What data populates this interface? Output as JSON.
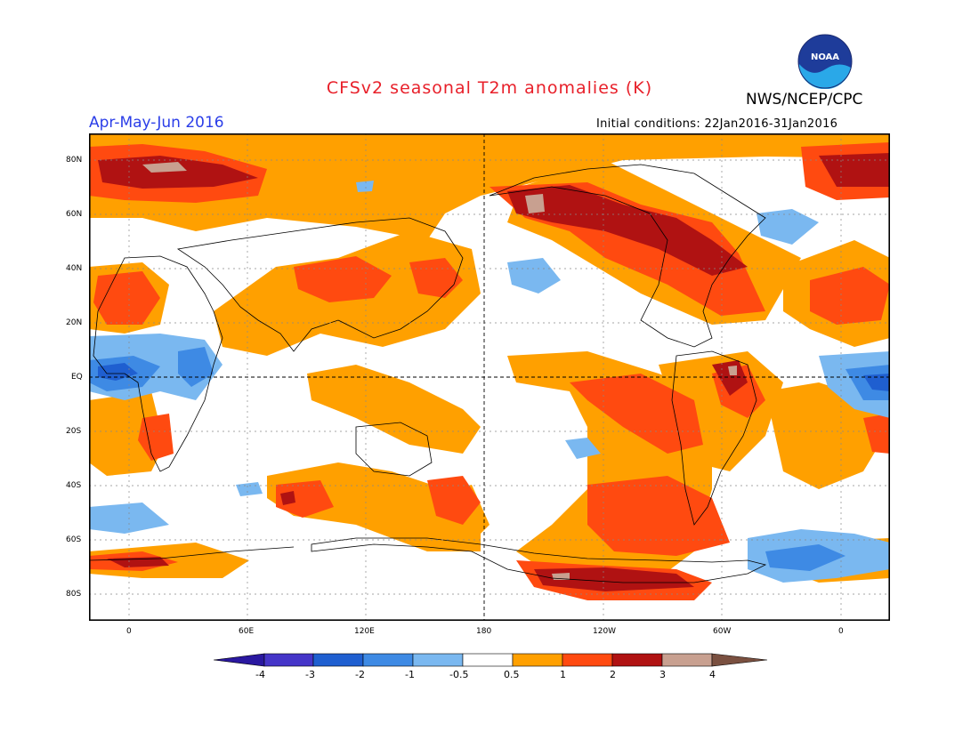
{
  "title": "CFSv2 seasonal T2m anomalies (K)",
  "agency": "NWS/NCEP/CPC",
  "logo_text": "NOAA",
  "season": "Apr-May-Jun 2016",
  "initial_conditions": "Initial conditions: 22Jan2016-31Jan2016",
  "lat_labels": [
    "80N",
    "60N",
    "40N",
    "20N",
    "EQ",
    "20S",
    "40S",
    "60S",
    "80S"
  ],
  "lon_labels": [
    "0",
    "60E",
    "120E",
    "180",
    "120W",
    "60W",
    "0"
  ],
  "colorbar": {
    "labels": [
      "-4",
      "-3",
      "-2",
      "-1",
      "-0.5",
      "0.5",
      "1",
      "2",
      "3",
      "4"
    ],
    "colors": [
      "#2a18a0",
      "#4535c8",
      "#1f5fd0",
      "#3e8ae4",
      "#7ab8f0",
      "#ffffff",
      "#ffa000",
      "#ff4a10",
      "#b01212",
      "#c8a090",
      "#7a5040"
    ]
  },
  "palette": {
    "title_red": "#e8202a",
    "season_blue": "#2b3ee8",
    "warm_light": "#ffa000",
    "warm_mid": "#ff4a10",
    "warm_strong": "#b01212",
    "warm_extreme": "#c8a090",
    "cool_light": "#7ab8f0",
    "cool_mid": "#3e8ae4",
    "cool_strong": "#1f5fd0"
  }
}
